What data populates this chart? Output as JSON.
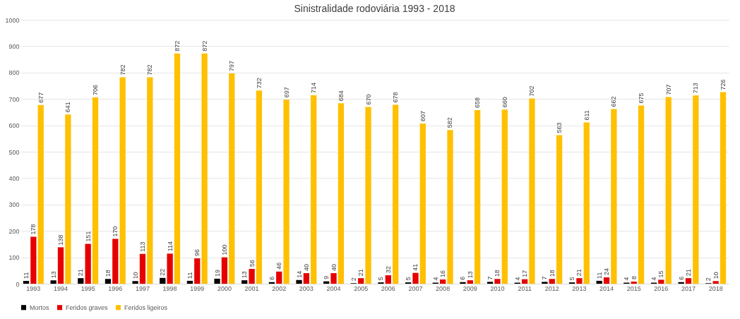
{
  "chart_data": {
    "type": "bar",
    "title": "Sinistralidade rodoviária 1993 - 2018",
    "categories": [
      "1993",
      "1994",
      "1995",
      "1996",
      "1997",
      "1998",
      "1999",
      "2000",
      "2001",
      "2002",
      "2003",
      "2004",
      "2005",
      "2006",
      "2007",
      "2008",
      "2009",
      "2010",
      "2011",
      "2012",
      "2013",
      "2014",
      "2015",
      "2016",
      "2017",
      "2018"
    ],
    "series": [
      {
        "name": "Mortos",
        "color": "#000000",
        "values": [
          11,
          13,
          21,
          18,
          10,
          22,
          11,
          19,
          13,
          6,
          14,
          9,
          2,
          5,
          5,
          4,
          6,
          7,
          4,
          7,
          5,
          11,
          4,
          4,
          6,
          2
        ]
      },
      {
        "name": "Feridos graves",
        "color": "#e60000",
        "values": [
          178,
          138,
          151,
          170,
          113,
          114,
          96,
          100,
          56,
          46,
          40,
          40,
          21,
          32,
          41,
          16,
          13,
          18,
          17,
          18,
          21,
          24,
          8,
          15,
          21,
          10
        ]
      },
      {
        "name": "Feridos ligeiros",
        "color": "#ffc000",
        "values": [
          677,
          641,
          706,
          782,
          782,
          872,
          872,
          797,
          732,
          697,
          714,
          684,
          670,
          678,
          607,
          582,
          658,
          660,
          702,
          563,
          611,
          662,
          675,
          707,
          713,
          726
        ]
      }
    ],
    "ylim": [
      0,
      1000
    ],
    "yticks": [
      0,
      100,
      200,
      300,
      400,
      500,
      600,
      700,
      800,
      900,
      1000
    ],
    "grid": "y",
    "legend": "bottom",
    "data_labels": true
  }
}
